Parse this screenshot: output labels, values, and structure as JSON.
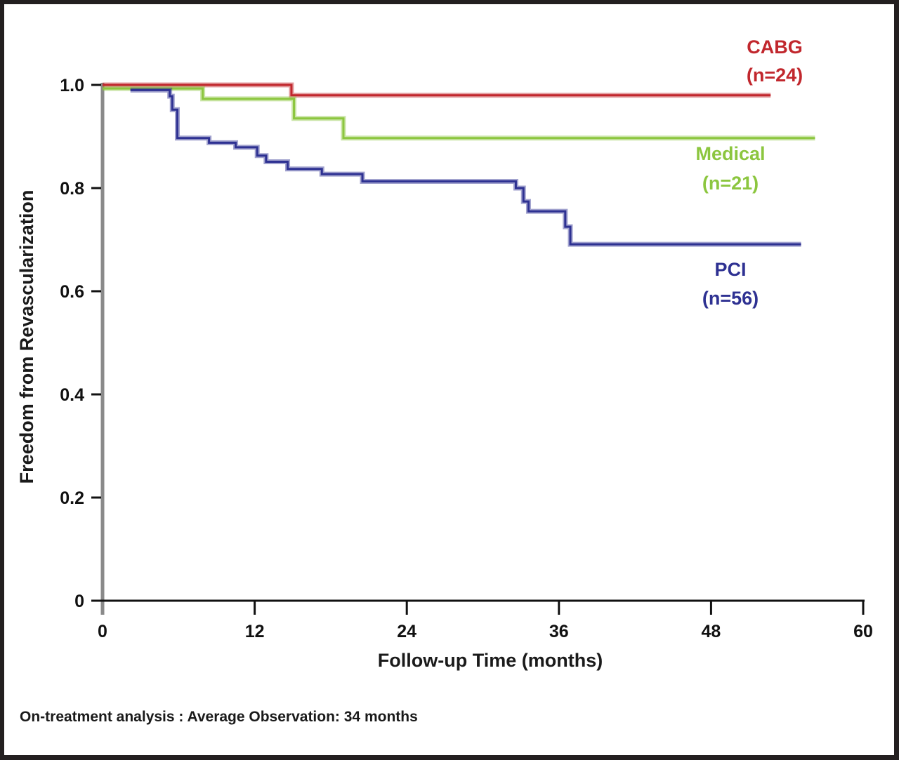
{
  "chart_data": {
    "type": "line",
    "subtype": "kaplan-meier step",
    "xlabel": "Follow-up Time (months)",
    "ylabel": "Freedom from Revascularization",
    "xlim": [
      0,
      60
    ],
    "ylim": [
      0,
      1.0
    ],
    "x_ticks": [
      "0",
      "12",
      "24",
      "36",
      "48",
      "60"
    ],
    "x_tick_values": [
      0,
      12,
      24,
      36,
      48,
      60
    ],
    "y_ticks": [
      "0",
      "0.2",
      "0.4",
      "0.6",
      "0.8",
      "1.0"
    ],
    "y_tick_values": [
      0,
      0.2,
      0.4,
      0.6,
      0.8,
      1.0
    ],
    "grid": false,
    "footnote": "On-treatment analysis : Average Observation: 34 months",
    "series": [
      {
        "name": "CABG",
        "n_label": "(n=24)",
        "color": "#c1272d",
        "x": [
          0,
          14.9,
          52.7
        ],
        "y": [
          1.0,
          0.98,
          0.98
        ]
      },
      {
        "name": "Medical",
        "n_label": "(n=21)",
        "color": "#8cc63f",
        "x": [
          0,
          7.9,
          15.1,
          19.0,
          56.2
        ],
        "y": [
          0.993,
          0.973,
          0.935,
          0.897,
          0.897
        ]
      },
      {
        "name": "PCI",
        "n_label": "(n=56)",
        "color": "#2e3192",
        "x": [
          2.2,
          5.3,
          5.5,
          5.9,
          8.4,
          10.5,
          12.2,
          12.9,
          14.6,
          17.3,
          20.5,
          32.6,
          33.2,
          33.6,
          36.5,
          36.9,
          55.1
        ],
        "y": [
          0.99,
          0.978,
          0.952,
          0.897,
          0.888,
          0.879,
          0.863,
          0.851,
          0.837,
          0.827,
          0.813,
          0.8,
          0.774,
          0.755,
          0.725,
          0.691,
          0.691
        ]
      }
    ]
  }
}
